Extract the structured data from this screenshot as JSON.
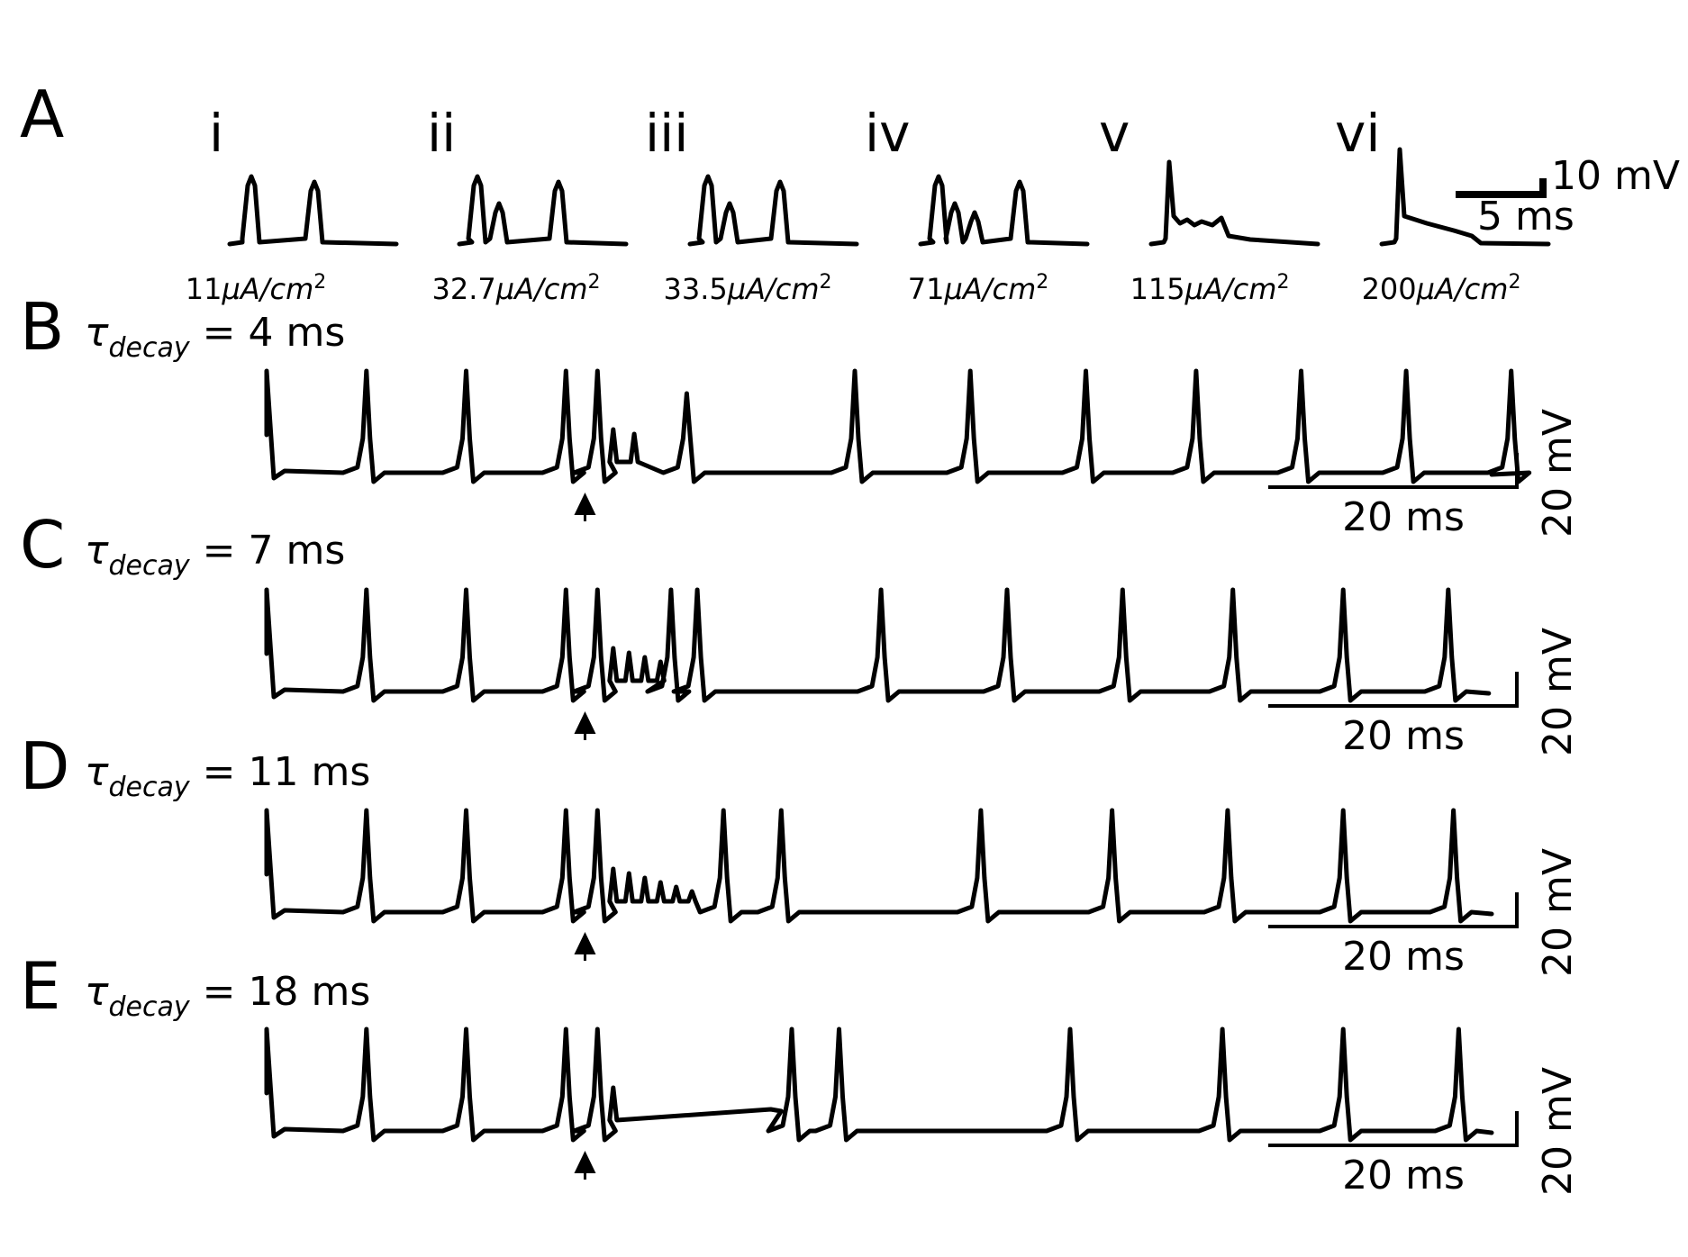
{
  "chart_data": [
    {
      "type": "line",
      "panel": "A",
      "subpanels": [
        {
          "label": "i",
          "current": "11",
          "unit": "μA/cm",
          "exp": "2",
          "spike_times_ms": [
            1.2,
            4.7
          ]
        },
        {
          "label": "ii",
          "current": "32.7",
          "unit": "μA/cm",
          "exp": "2",
          "spike_times_ms": [
            1.0,
            2.2,
            5.5
          ]
        },
        {
          "label": "iii",
          "current": "33.5",
          "unit": "μA/cm",
          "exp": "2",
          "spike_times_ms": [
            1.0,
            2.2,
            5.0
          ]
        },
        {
          "label": "iv",
          "current": "71",
          "unit": "μA/cm",
          "exp": "2",
          "spike_times_ms": [
            1.0,
            1.9,
            3.0,
            5.5
          ]
        },
        {
          "label": "v",
          "current": "115",
          "unit": "μA/cm",
          "exp": "2",
          "spike_times_ms": [
            1.0
          ]
        },
        {
          "label": "vi",
          "current": "200",
          "unit": "μA/cm",
          "exp": "2",
          "spike_times_ms": [
            1.0
          ]
        }
      ],
      "scalebar": {
        "v_label": "10 mV",
        "t_label": "5 ms",
        "v_mV": 10,
        "t_ms": 5
      }
    },
    {
      "type": "line",
      "panel": "B",
      "tau_prefix": "τ",
      "tau_sub": "decay",
      "tau_value": " = 4 ms",
      "stim_time_ms": 62,
      "spike_times_ms": [
        0,
        19,
        38,
        57,
        63,
        80,
        112,
        134,
        156,
        177,
        197,
        217,
        237
      ],
      "burst_wiggles_ms": [
        66,
        70
      ],
      "scalebar": {
        "t_label": "20 ms",
        "v_label": "20 mV",
        "t_ms": 20,
        "v_mV": 20
      }
    },
    {
      "type": "line",
      "panel": "C",
      "tau_prefix": "τ",
      "tau_sub": "decay",
      "tau_value": " = 7 ms",
      "stim_time_ms": 62,
      "spike_times_ms": [
        0,
        19,
        38,
        57,
        63,
        77,
        82,
        117,
        141,
        163,
        184,
        205,
        225
      ],
      "burst_wiggles_ms": [
        66,
        69,
        72,
        75
      ],
      "scalebar": {
        "t_label": "20 ms",
        "v_label": "20 mV",
        "t_ms": 20,
        "v_mV": 20
      }
    },
    {
      "type": "line",
      "panel": "D",
      "tau_prefix": "τ",
      "tau_sub": "decay",
      "tau_value": " = 11 ms",
      "stim_time_ms": 62,
      "spike_times_ms": [
        0,
        19,
        38,
        57,
        63,
        87,
        98,
        136,
        161,
        183,
        205,
        226
      ],
      "burst_wiggles_ms": [
        66,
        69,
        72,
        75,
        78,
        81
      ],
      "scalebar": {
        "t_label": "20 ms",
        "v_label": "20 mV",
        "t_ms": 20,
        "v_mV": 20
      }
    },
    {
      "type": "line",
      "panel": "E",
      "tau_prefix": "τ",
      "tau_sub": "decay",
      "tau_value": " = 18 ms",
      "stim_time_ms": 62,
      "spike_times_ms": [
        0,
        19,
        38,
        57,
        63,
        100,
        109,
        153,
        182,
        205,
        227
      ],
      "burst_wiggles_ms": [
        66
      ],
      "scalebar": {
        "t_label": "20 ms",
        "v_label": "20 mV",
        "t_ms": 20,
        "v_mV": 20
      }
    }
  ]
}
